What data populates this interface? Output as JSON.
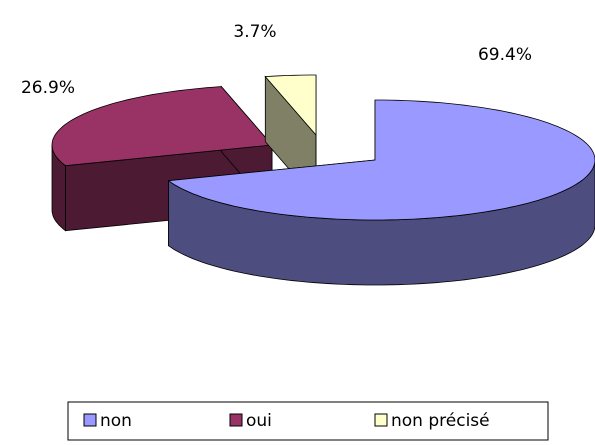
{
  "chart_data": {
    "type": "pie",
    "categories": [
      "non",
      "oui",
      "non précisé"
    ],
    "values": [
      69.4,
      26.9,
      3.7
    ],
    "value_labels": [
      "69.4%",
      "26.9%",
      "3.7%"
    ],
    "colors": [
      "#9999ff",
      "#993366",
      "#ffffcc"
    ],
    "legend": "bottom"
  }
}
